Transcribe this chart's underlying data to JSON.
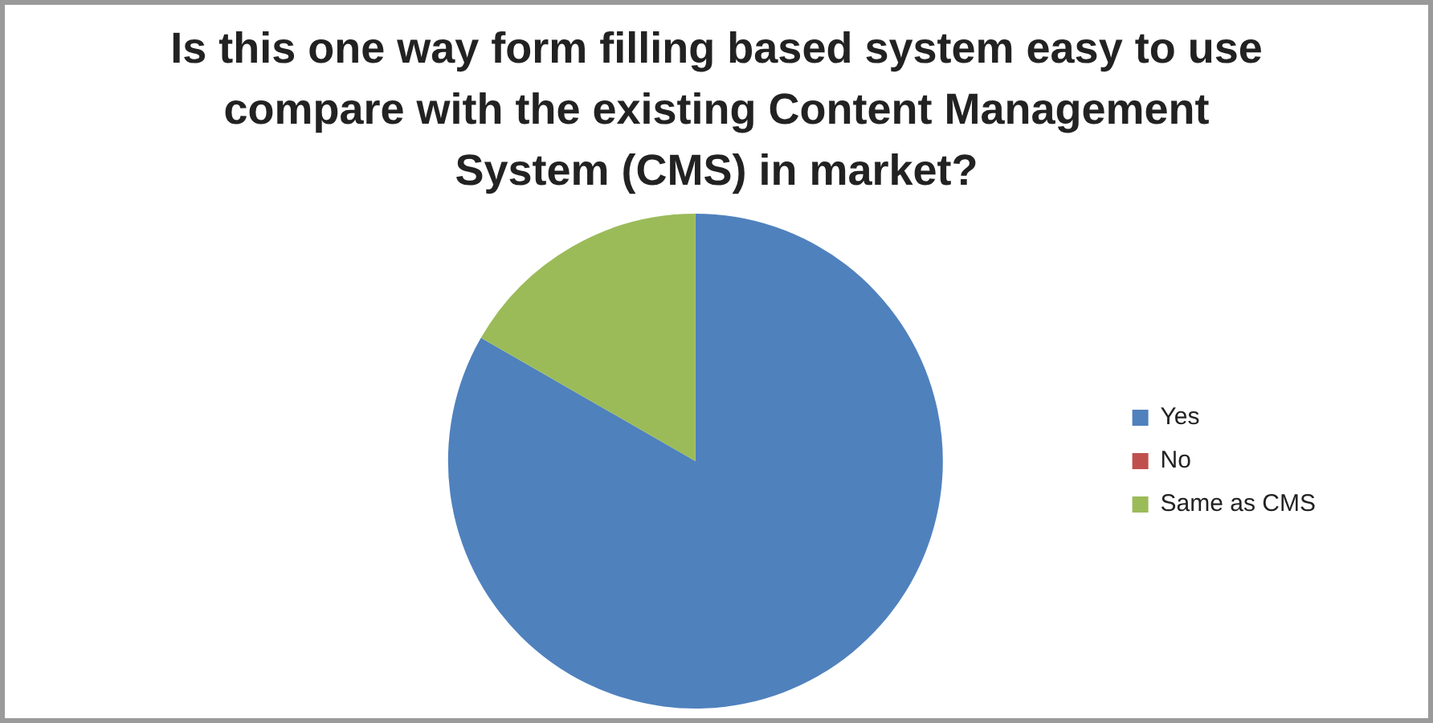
{
  "chart_data": {
    "type": "pie",
    "title": "Is this one way form filling based system easy to use compare with the existing Content Management System (CMS) in market?",
    "categories": [
      "Yes",
      "No",
      "Same as CMS"
    ],
    "values": [
      83.3,
      0,
      16.7
    ],
    "colors": [
      "#4f81bd",
      "#c0504d",
      "#9bbb59"
    ],
    "legend": "right"
  }
}
